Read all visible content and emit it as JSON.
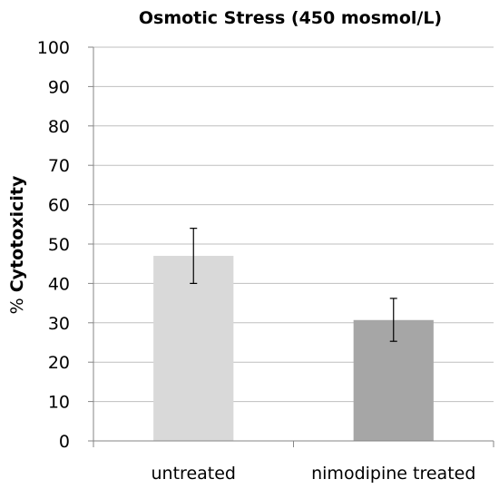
{
  "chart_data": {
    "type": "bar",
    "title": "Osmotic Stress (450 mosmol/L)",
    "ylabel_prefix": "% ",
    "ylabel_main": "Cytotoxicity",
    "xlabel": "",
    "categories": [
      "untreated",
      "nimodipine treated"
    ],
    "values": [
      47,
      30.7
    ],
    "error_low": [
      40,
      25.3
    ],
    "error_high": [
      54,
      36.2
    ],
    "ylim": [
      0,
      100
    ],
    "yticks": [
      0,
      10,
      20,
      30,
      40,
      50,
      60,
      70,
      80,
      90,
      100
    ],
    "grid": true,
    "bar_colors": [
      "#d9d9d9",
      "#a6a6a6"
    ]
  }
}
